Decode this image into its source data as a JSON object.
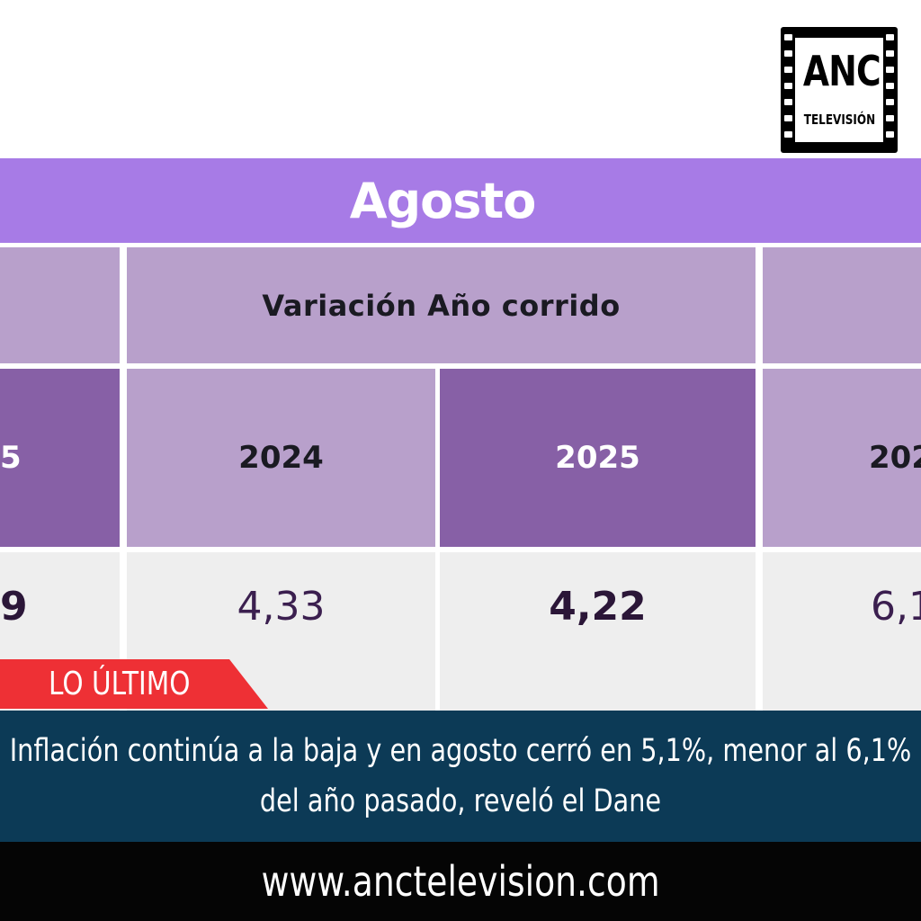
{
  "logo": {
    "name": "ANC",
    "subtitle": "TELEVISIÓN"
  },
  "table": {
    "month_header": "Agosto",
    "section_header": "Variación Año corrido",
    "left_year_partial": "5",
    "years": [
      "2024",
      "2025",
      "202"
    ],
    "left_value_partial": "9",
    "values": [
      "4,33",
      "4,22",
      "6,1"
    ]
  },
  "lower_third": {
    "tag": "LO ÚLTIMO",
    "headline": "Inflación continúa a la baja y en agosto cerró en 5,1%, menor al 6,1% del año pasado, reveló el Dane",
    "website": "www.anctelevision.com"
  },
  "colors": {
    "header_purple": "#a77be6",
    "light_purple": "#b8a0cb",
    "dark_purple": "#8760a6",
    "tag_red": "#ee3035",
    "news_bar_blue": "#0c3a56"
  }
}
